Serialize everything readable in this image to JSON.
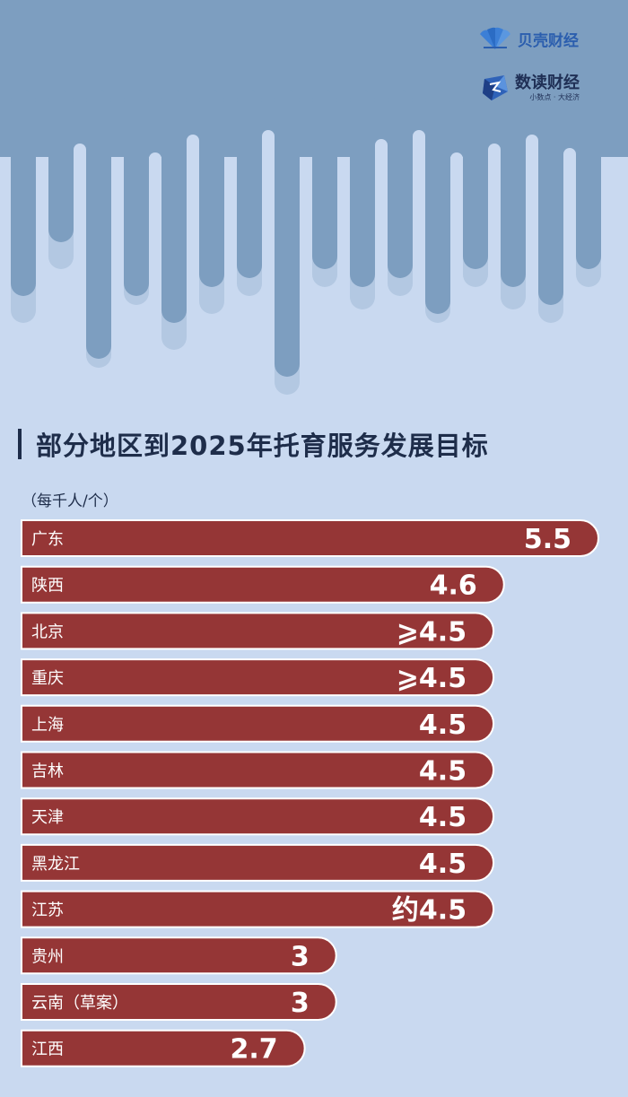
{
  "logos": {
    "beike": {
      "name": "贝壳财经"
    },
    "shudu": {
      "name": "数读财经",
      "slogan": "小数点 · 大经济"
    }
  },
  "title": "部分地区到2025年托育服务发展目标",
  "unit": "（每千人/个）",
  "colors": {
    "background": "#c9d9f0",
    "bar": "#953636",
    "bar_border": "#ffffff",
    "bar_text": "#ffffff",
    "art_dark": "#7d9ec0",
    "art_light": "#b3c8e2"
  },
  "chart_data": {
    "type": "bar",
    "orientation": "horizontal",
    "categories": [
      "广东",
      "陕西",
      "北京",
      "重庆",
      "上海",
      "吉林",
      "天津",
      "黑龙江",
      "江苏",
      "贵州",
      "云南（草案）",
      "江西"
    ],
    "values": [
      5.5,
      4.6,
      4.5,
      4.5,
      4.5,
      4.5,
      4.5,
      4.5,
      4.5,
      3,
      3,
      2.7
    ],
    "value_labels": [
      "5.5",
      "4.6",
      "⩾4.5",
      "⩾4.5",
      "4.5",
      "4.5",
      "4.5",
      "4.5",
      "约4.5",
      "3",
      "3",
      "2.7"
    ],
    "title": "部分地区到2025年托育服务发展目标",
    "unit": "（每千人/个）",
    "grid": false,
    "legend": "none"
  }
}
